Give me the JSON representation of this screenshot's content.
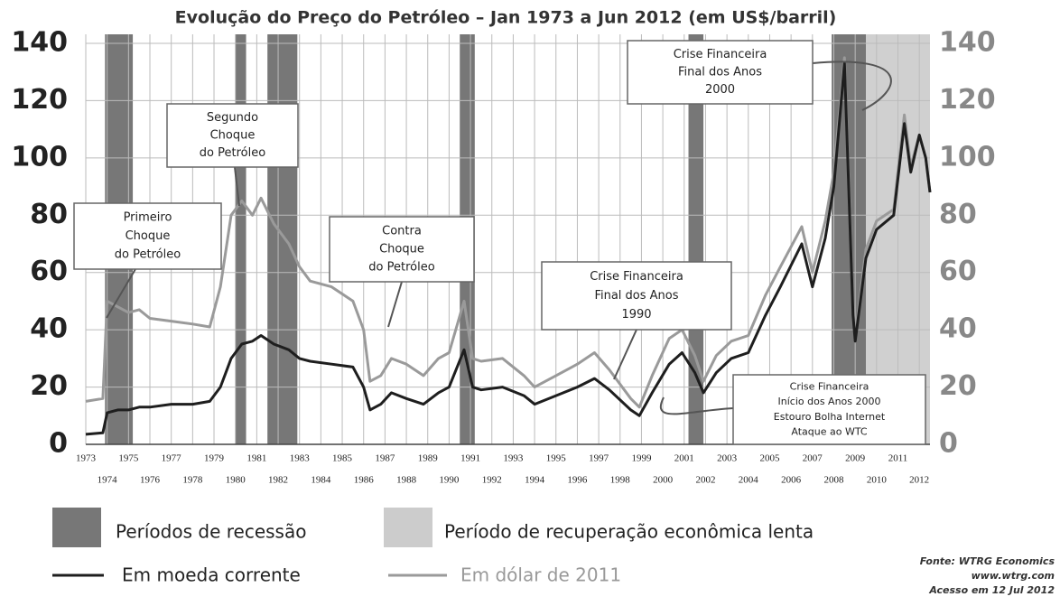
{
  "chart_data": {
    "type": "line",
    "title": "Evolução do Preço do Petróleo – Jan 1973 a Jun 2012 (em US$/barril)",
    "x": [
      1973.0,
      1973.8,
      1974.0,
      1974.5,
      1975.0,
      1975.5,
      1976.0,
      1977.0,
      1978.0,
      1978.8,
      1979.3,
      1979.8,
      1980.3,
      1980.8,
      1981.2,
      1981.8,
      1982.5,
      1983.0,
      1983.5,
      1984.5,
      1985.5,
      1986.0,
      1986.3,
      1986.8,
      1987.3,
      1988.0,
      1988.8,
      1989.5,
      1990.0,
      1990.7,
      1991.1,
      1991.5,
      1992.5,
      1993.5,
      1994.0,
      1995.0,
      1996.0,
      1996.8,
      1997.5,
      1998.5,
      1998.9,
      1999.5,
      2000.3,
      2000.9,
      2001.5,
      2001.9,
      2002.5,
      2003.2,
      2004.0,
      2004.8,
      2005.5,
      2006.5,
      2007.0,
      2007.6,
      2008.0,
      2008.5,
      2008.9,
      2009.0,
      2009.5,
      2010.0,
      2010.8,
      2011.3,
      2011.6,
      2012.0,
      2012.3,
      2012.5
    ],
    "series": [
      {
        "name": "Em moeda corrente",
        "color": "#1e1e1e",
        "values": [
          3.5,
          4,
          11,
          12,
          12,
          13,
          13,
          14,
          14,
          15,
          20,
          30,
          35,
          36,
          38,
          35,
          33,
          30,
          29,
          28,
          27,
          20,
          12,
          14,
          18,
          16,
          14,
          18,
          20,
          33,
          20,
          19,
          20,
          17,
          14,
          17,
          20,
          23,
          19,
          12,
          10,
          18,
          28,
          32,
          25,
          18,
          25,
          30,
          32,
          45,
          55,
          70,
          55,
          72,
          90,
          133,
          45,
          36,
          65,
          75,
          80,
          112,
          95,
          108,
          100,
          88
        ]
      },
      {
        "name": "Em dólar de 2011",
        "color": "#9a9a9a",
        "values": [
          15,
          16,
          50,
          48,
          46,
          47,
          44,
          43,
          42,
          41,
          55,
          80,
          85,
          80,
          86,
          77,
          70,
          62,
          57,
          55,
          50,
          40,
          22,
          24,
          30,
          28,
          24,
          30,
          32,
          50,
          30,
          29,
          30,
          24,
          20,
          24,
          28,
          32,
          26,
          16,
          13,
          24,
          37,
          40,
          31,
          22,
          31,
          36,
          38,
          52,
          62,
          76,
          60,
          78,
          95,
          135,
          47,
          38,
          68,
          78,
          82,
          115,
          97,
          108,
          100,
          88
        ]
      }
    ],
    "recessions": [
      [
        1973.9,
        1975.2
      ],
      [
        1980.0,
        1980.5
      ],
      [
        1981.5,
        1982.9
      ],
      [
        1990.5,
        1991.2
      ],
      [
        2001.2,
        2001.9
      ],
      [
        2007.9,
        2009.5
      ]
    ],
    "recovery": [
      2009.5,
      2012.5
    ],
    "xlim": [
      1973,
      2012.5
    ],
    "xticks": [
      1973,
      1974,
      1975,
      1976,
      1977,
      1978,
      1979,
      1980,
      1981,
      1982,
      1983,
      1984,
      1985,
      1986,
      1987,
      1988,
      1989,
      1990,
      1991,
      1992,
      1993,
      1994,
      1995,
      1996,
      1997,
      1998,
      1999,
      2000,
      2001,
      2002,
      2003,
      2004,
      2005,
      2006,
      2007,
      2008,
      2009,
      2010,
      2011,
      2012
    ],
    "ylim": [
      0,
      140
    ],
    "yticks": [
      0,
      20,
      40,
      60,
      80,
      100,
      120,
      140
    ],
    "y2lim": [
      0,
      140
    ],
    "y2ticks": [
      0,
      20,
      40,
      60,
      80,
      100,
      120,
      140
    ],
    "grid": true,
    "annotations": [
      [
        "Primeiro",
        "Choque",
        "do Petróleo"
      ],
      [
        "Segundo",
        "Choque",
        "do Petróleo"
      ],
      [
        "Contra",
        "Choque",
        "do Petróleo"
      ],
      [
        "Crise Financeira",
        "Final dos Anos",
        "1990"
      ],
      [
        "Crise Financeira",
        "Início dos Anos 2000",
        "Estouro Bolha Internet",
        "Ataque ao WTC"
      ],
      [
        "Crise Financeira",
        "Final dos Anos",
        "2000"
      ]
    ],
    "legend": {
      "recession": "Períodos de recessão",
      "recovery": "Período de recuperação econômica lenta"
    },
    "source": [
      "Fonte: WTRG Economics",
      "www.wtrg.com",
      "Acesso em 12 Jul 2012"
    ]
  }
}
